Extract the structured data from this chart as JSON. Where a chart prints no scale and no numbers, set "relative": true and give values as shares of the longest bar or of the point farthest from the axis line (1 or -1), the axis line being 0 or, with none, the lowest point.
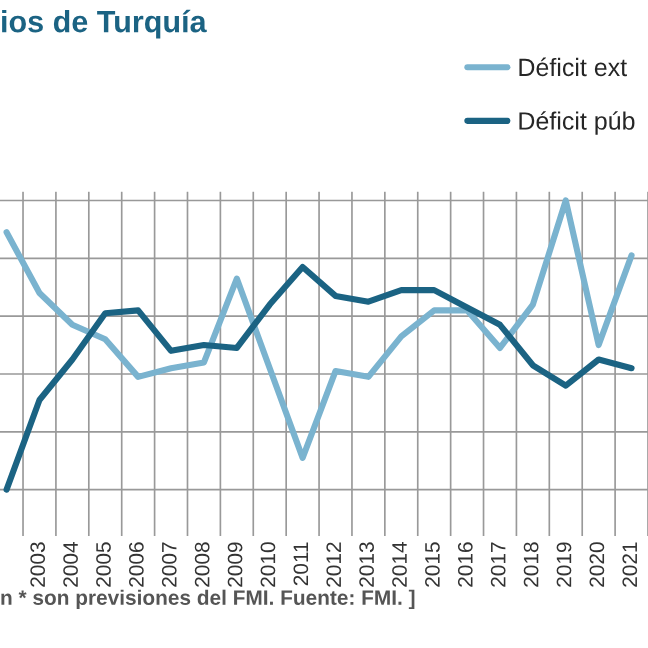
{
  "chart_data": {
    "type": "line",
    "title": "ios de Turquía",
    "relative": true,
    "grid": true,
    "legend": "top right",
    "categories": [
      null,
      "2003",
      "2004",
      "2005",
      "2006",
      "2007",
      "2008",
      "2009",
      "2010",
      "2011",
      "2012",
      "2013",
      "2014",
      "2015",
      "2016",
      "2017",
      "2018",
      "2019",
      "2020",
      "2021"
    ],
    "series": [
      {
        "name": "Déficit ext",
        "color": "#7ab3cf",
        "values": [
          0.89,
          0.68,
          0.57,
          0.52,
          0.39,
          0.42,
          0.44,
          0.73,
          0.42,
          0.11,
          0.41,
          0.39,
          0.53,
          0.62,
          0.62,
          0.49,
          0.64,
          1.0,
          0.5,
          0.81
        ]
      },
      {
        "name": "Déficit púb",
        "color": "#1b6383",
        "values": [
          0.0,
          0.31,
          0.45,
          0.61,
          0.62,
          0.48,
          0.5,
          0.49,
          0.64,
          0.77,
          0.67,
          0.65,
          0.69,
          0.69,
          0.63,
          0.57,
          0.43,
          0.36,
          0.45,
          0.42
        ]
      }
    ],
    "annotations": [
      "n * son previsiones del FMI. Fuente: FMI. ]"
    ]
  }
}
